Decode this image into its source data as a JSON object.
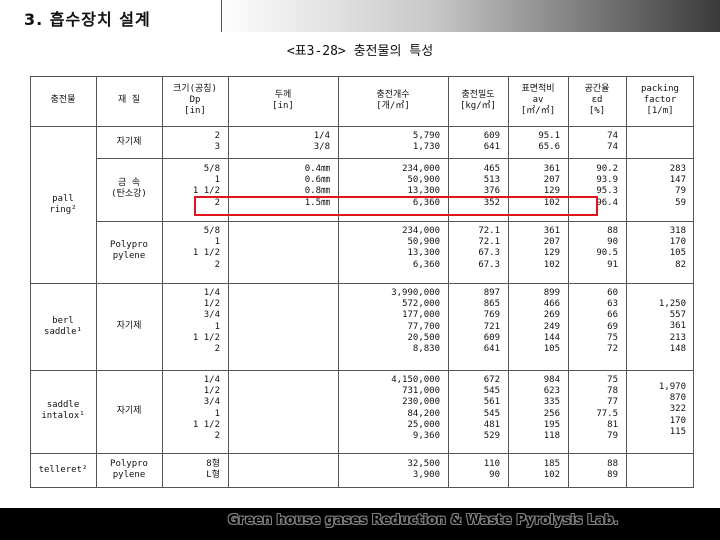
{
  "header": {
    "title": "3. 흡수장치 설계"
  },
  "caption": "<표3-28> 충전물의 특성",
  "table": {
    "headers": {
      "packing": "충전물",
      "material": "재 질",
      "size": "크기(공칭)\nDp\n[in]",
      "thickness": "두께\n[in]",
      "count": "충전개수\n[개/㎥]",
      "density": "충전밀도\n[kg/㎥]",
      "surface": "표면적비\nav\n[㎡/㎥]",
      "voidage": "공간율\nεd\n[%]",
      "factor": "packing\nfactor\n[1/m]"
    },
    "packings": [
      {
        "label": "pall\nring²"
      },
      {
        "label": "berl\nsaddle¹"
      },
      {
        "label": "saddle\nintalox¹"
      },
      {
        "label": "telleret²"
      }
    ],
    "rows": [
      {
        "material": "자기제",
        "size": "2\n3",
        "thickness": "1/4\n3/8",
        "count": "5,790\n1,730",
        "density": "609\n641",
        "surface": "95.1\n65.6",
        "voidage": "74\n74",
        "factor": ""
      },
      {
        "material": "금 속\n(탄소강)",
        "size": "5/8\n1\n1 1/2\n2",
        "thickness": "0.4㎜\n0.6㎜\n0.8㎜\n1.5㎜",
        "count": "234,000\n50,900\n13,300\n6,360",
        "density": "465\n513\n376\n352",
        "surface": "361\n207\n129\n102",
        "voidage": "90.2\n93.9\n95.3\n96.4",
        "factor": "283\n147\n79\n59"
      },
      {
        "material": "Polypro\npylene",
        "size": "5/8\n1\n1 1/2\n2",
        "thickness": "",
        "count": "234,000\n50,900\n13,300\n6,360",
        "density": "72.1\n72.1\n67.3\n67.3",
        "surface": "361\n207\n129\n102",
        "voidage": "88\n90\n90.5\n91",
        "factor": "318\n170\n105\n82"
      },
      {
        "material": "자기제",
        "size": "1/4\n1/2\n3/4\n1\n1 1/2\n2",
        "thickness": "",
        "count": "3,990,000\n572,000\n177,000\n77,700\n20,500\n8,830",
        "density": "897\n865\n769\n721\n609\n641",
        "surface": "899\n466\n269\n249\n144\n105",
        "voidage": "60\n63\n66\n69\n75\n72",
        "factor": "1,250\n557\n361\n213\n148"
      },
      {
        "material": "자기제",
        "size": "1/4\n1/2\n3/4\n1\n1 1/2\n2",
        "thickness": "",
        "count": "4,150,000\n731,000\n230,000\n84,200\n25,000\n9,360",
        "density": "672\n545\n561\n545\n481\n529",
        "surface": "984\n623\n335\n256\n195\n118",
        "voidage": "75\n78\n77\n77.5\n81\n79",
        "factor": "1,970\n870\n322\n170\n115"
      },
      {
        "material": "Polypro\npylene",
        "size": "8형\nL형",
        "thickness": "",
        "count": "32,500\n3,900",
        "density": "110\n90",
        "surface": "185\n102",
        "voidage": "88\n89",
        "factor": ""
      }
    ]
  },
  "footer": {
    "text": "Green house gases Reduction & Waste Pyrolysis Lab."
  },
  "colors": {
    "highlight": "#e0141c",
    "footer_bg": "#000000",
    "grid": "#555555"
  }
}
